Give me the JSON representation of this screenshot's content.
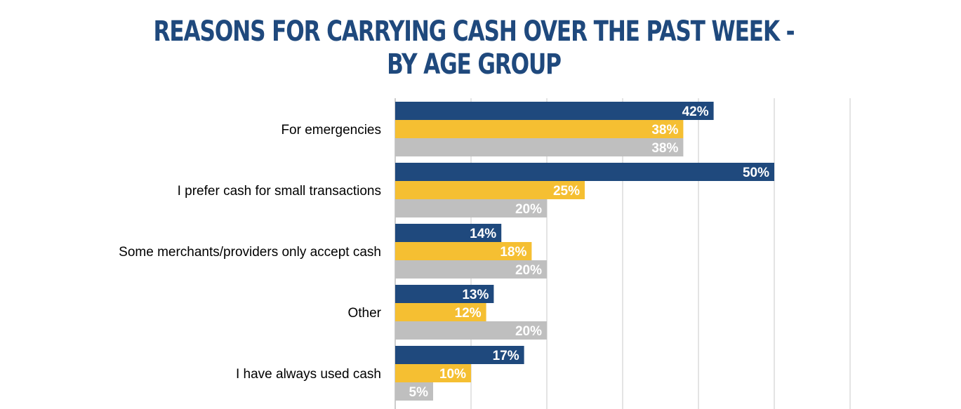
{
  "chart_data": {
    "type": "bar",
    "orientation": "horizontal",
    "title": "REASONS FOR CARRYING CASH OVER THE PAST WEEK -",
    "subtitle": "BY AGE GROUP",
    "categories": [
      "For emergencies",
      "I prefer cash  for small transactions",
      "Some merchants/providers only accept cash",
      "Other",
      "I have always used cash"
    ],
    "series": [
      {
        "color": "#1f497d",
        "values": [
          42,
          50,
          14,
          13,
          17
        ],
        "labels": [
          "42%",
          "50%",
          "14%",
          "13%",
          "17%"
        ]
      },
      {
        "color": "#f5bf32",
        "values": [
          38,
          25,
          18,
          12,
          10
        ],
        "labels": [
          "38%",
          "25%",
          "18%",
          "12%",
          "10%"
        ]
      },
      {
        "color": "#bfbfbf",
        "values": [
          38,
          20,
          20,
          20,
          5
        ],
        "labels": [
          "38%",
          "20%",
          "20%",
          "20%",
          "5%"
        ]
      }
    ],
    "xlim": [
      0,
      60
    ],
    "grid": true,
    "legend": "none"
  }
}
